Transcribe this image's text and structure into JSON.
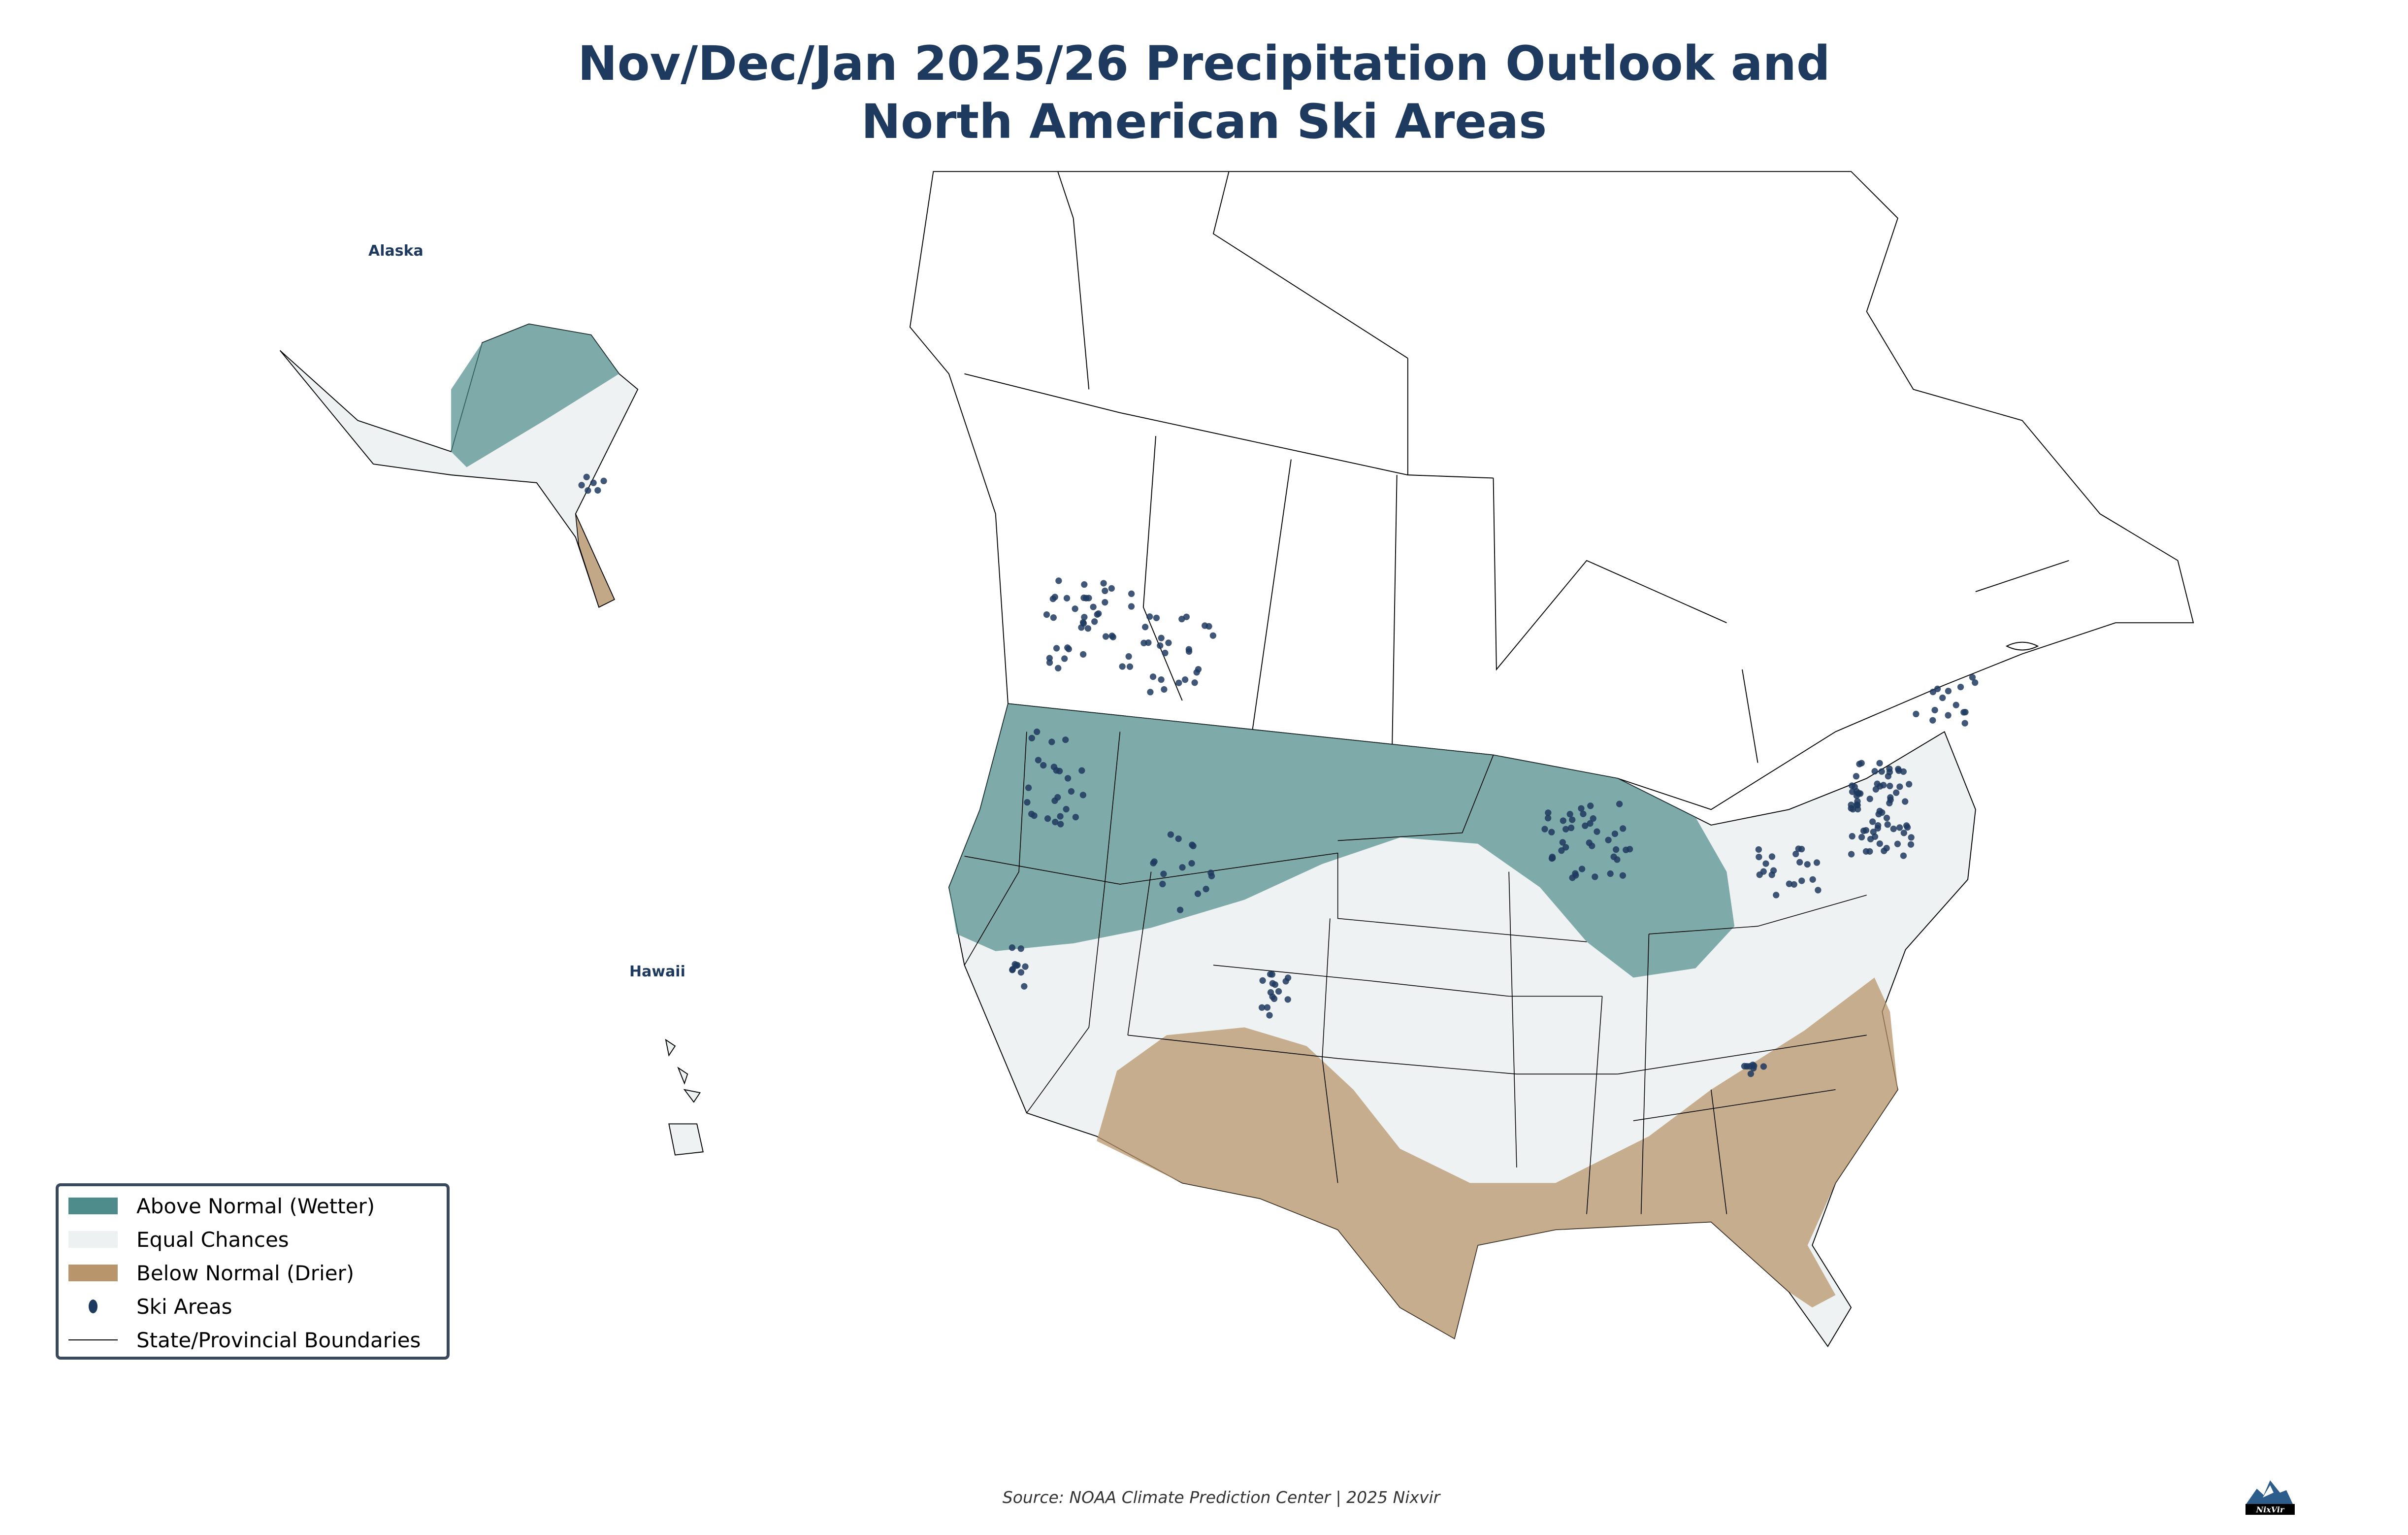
{
  "title": {
    "line1": "Nov/Dec/Jan 2025/26 Precipitation Outlook and",
    "line2": "North American Ski Areas"
  },
  "insets": {
    "alaska": "Alaska",
    "hawaii": "Hawaii"
  },
  "legend": {
    "items": [
      {
        "label": "Above Normal (Wetter)",
        "color": "#4e8b8b"
      },
      {
        "label": "Equal Chances",
        "color": "#edf1f1"
      },
      {
        "label": "Below Normal (Drier)",
        "color": "#b8956b"
      },
      {
        "label": "Ski Areas",
        "color": "#1f3a5f"
      },
      {
        "label": "State/Provincial Boundaries",
        "color": "#000000"
      }
    ]
  },
  "source": "Source: NOAA Climate Prediction Center | 2025 Nixvir",
  "logo": "NixVir"
}
